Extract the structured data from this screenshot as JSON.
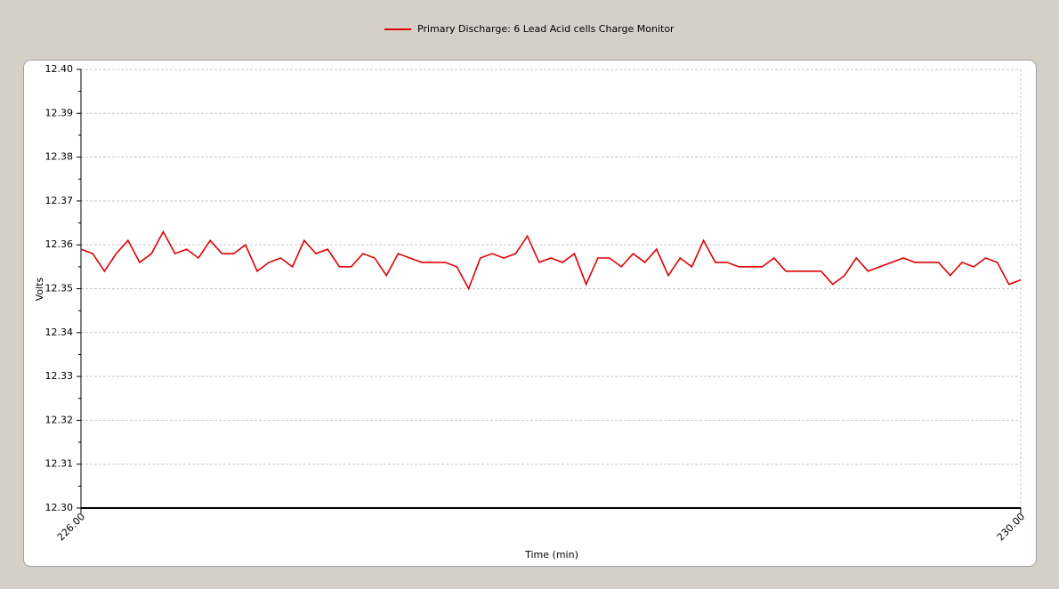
{
  "chart_data": {
    "type": "line",
    "xlabel": "Time (min)",
    "ylabel": "Volts",
    "x": [
      226,
      226.05,
      226.1,
      226.15,
      226.2,
      226.25,
      226.3,
      226.35,
      226.4,
      226.45,
      226.5,
      226.55,
      226.6,
      226.65,
      226.7,
      226.75,
      226.8,
      226.85,
      226.9,
      226.95,
      227,
      227.05,
      227.1,
      227.15,
      227.2,
      227.25,
      227.3,
      227.35,
      227.4,
      227.45,
      227.5,
      227.55,
      227.6,
      227.65,
      227.7,
      227.75,
      227.8,
      227.85,
      227.9,
      227.95,
      228,
      228.05,
      228.1,
      228.15,
      228.2,
      228.25,
      228.3,
      228.35,
      228.4,
      228.45,
      228.5,
      228.55,
      228.6,
      228.65,
      228.7,
      228.75,
      228.8,
      228.85,
      228.9,
      228.95,
      229,
      229.05,
      229.1,
      229.15,
      229.2,
      229.25,
      229.3,
      229.35,
      229.4,
      229.45,
      229.5,
      229.55,
      229.6,
      229.65,
      229.7,
      229.75,
      229.8,
      229.85,
      229.9,
      229.95,
      230
    ],
    "series": [
      {
        "name": "Primary Discharge: 6 Lead Acid cells Charge Monitor",
        "color": "#dd0000",
        "values": [
          12.359,
          12.358,
          12.354,
          12.358,
          12.361,
          12.356,
          12.358,
          12.363,
          12.358,
          12.359,
          12.357,
          12.361,
          12.358,
          12.358,
          12.36,
          12.354,
          12.356,
          12.357,
          12.355,
          12.361,
          12.358,
          12.359,
          12.355,
          12.355,
          12.358,
          12.357,
          12.353,
          12.358,
          12.357,
          12.356,
          12.356,
          12.356,
          12.355,
          12.35,
          12.357,
          12.358,
          12.357,
          12.358,
          12.362,
          12.356,
          12.357,
          12.356,
          12.358,
          12.351,
          12.357,
          12.357,
          12.355,
          12.358,
          12.356,
          12.359,
          12.353,
          12.357,
          12.355,
          12.361,
          12.356,
          12.356,
          12.355,
          12.355,
          12.355,
          12.357,
          12.354,
          12.354,
          12.354,
          12.354,
          12.351,
          12.353,
          12.357,
          12.354,
          12.355,
          12.356,
          12.357,
          12.356,
          12.356,
          12.356,
          12.353,
          12.356,
          12.355,
          12.357,
          12.356,
          12.351,
          12.352
        ]
      }
    ],
    "xlim": [
      226,
      230
    ],
    "xticks": [
      {
        "value": 226,
        "label": "226.00"
      },
      {
        "value": 230,
        "label": "230.00"
      }
    ],
    "ylim": [
      12.3,
      12.4
    ],
    "yticks": [
      {
        "value": 12.3,
        "label": "12.30"
      },
      12.31,
      12.32,
      12.33,
      12.34,
      12.35,
      12.36,
      12.37,
      12.38,
      12.39,
      {
        "value": 12.4,
        "label": "12.40"
      }
    ],
    "grid": true,
    "legend": "top"
  }
}
